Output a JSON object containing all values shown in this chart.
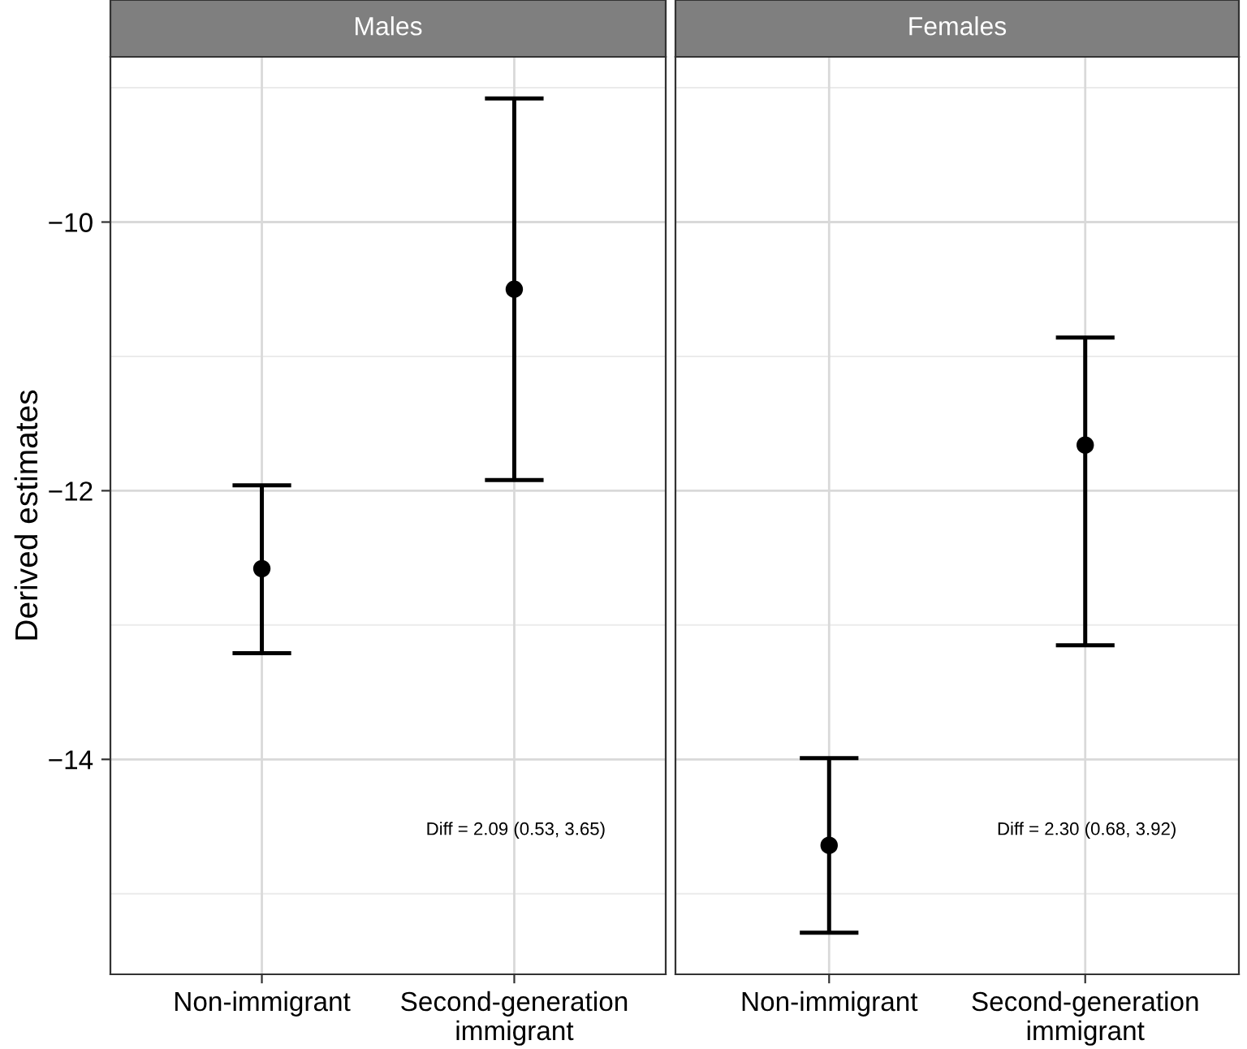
{
  "chart_data": [
    {
      "type": "scatter",
      "title": "Males",
      "ylabel": "Derived estimates",
      "categories": [
        "Non-immigrant",
        "Second-generation\nimmigrant"
      ],
      "values": [
        -12.58,
        -10.5
      ],
      "errors": [
        [
          -13.21,
          -11.96
        ],
        [
          -11.92,
          -9.08
        ]
      ],
      "color": "#000000",
      "marker": "circle",
      "ylim": [
        -15.6,
        -8.77
      ],
      "yticks": [
        -14,
        -12,
        -10
      ],
      "grid": true,
      "annotations": [
        "Diff = 2.09 (0.53, 3.65)"
      ]
    },
    {
      "type": "scatter",
      "title": "Females",
      "categories": [
        "Non-immigrant",
        "Second-generation\nimmigrant"
      ],
      "values": [
        -14.64,
        -11.66
      ],
      "errors": [
        [
          -15.29,
          -13.99
        ],
        [
          -13.15,
          -10.86
        ]
      ],
      "color": "#000000",
      "marker": "circle",
      "ylim": [
        -15.6,
        -8.77
      ],
      "yticks": [
        -14,
        -12,
        -10
      ],
      "grid": true,
      "tick_labels": "x",
      "annotations": [
        "Diff = 2.30 (0.68, 3.92)"
      ]
    }
  ]
}
